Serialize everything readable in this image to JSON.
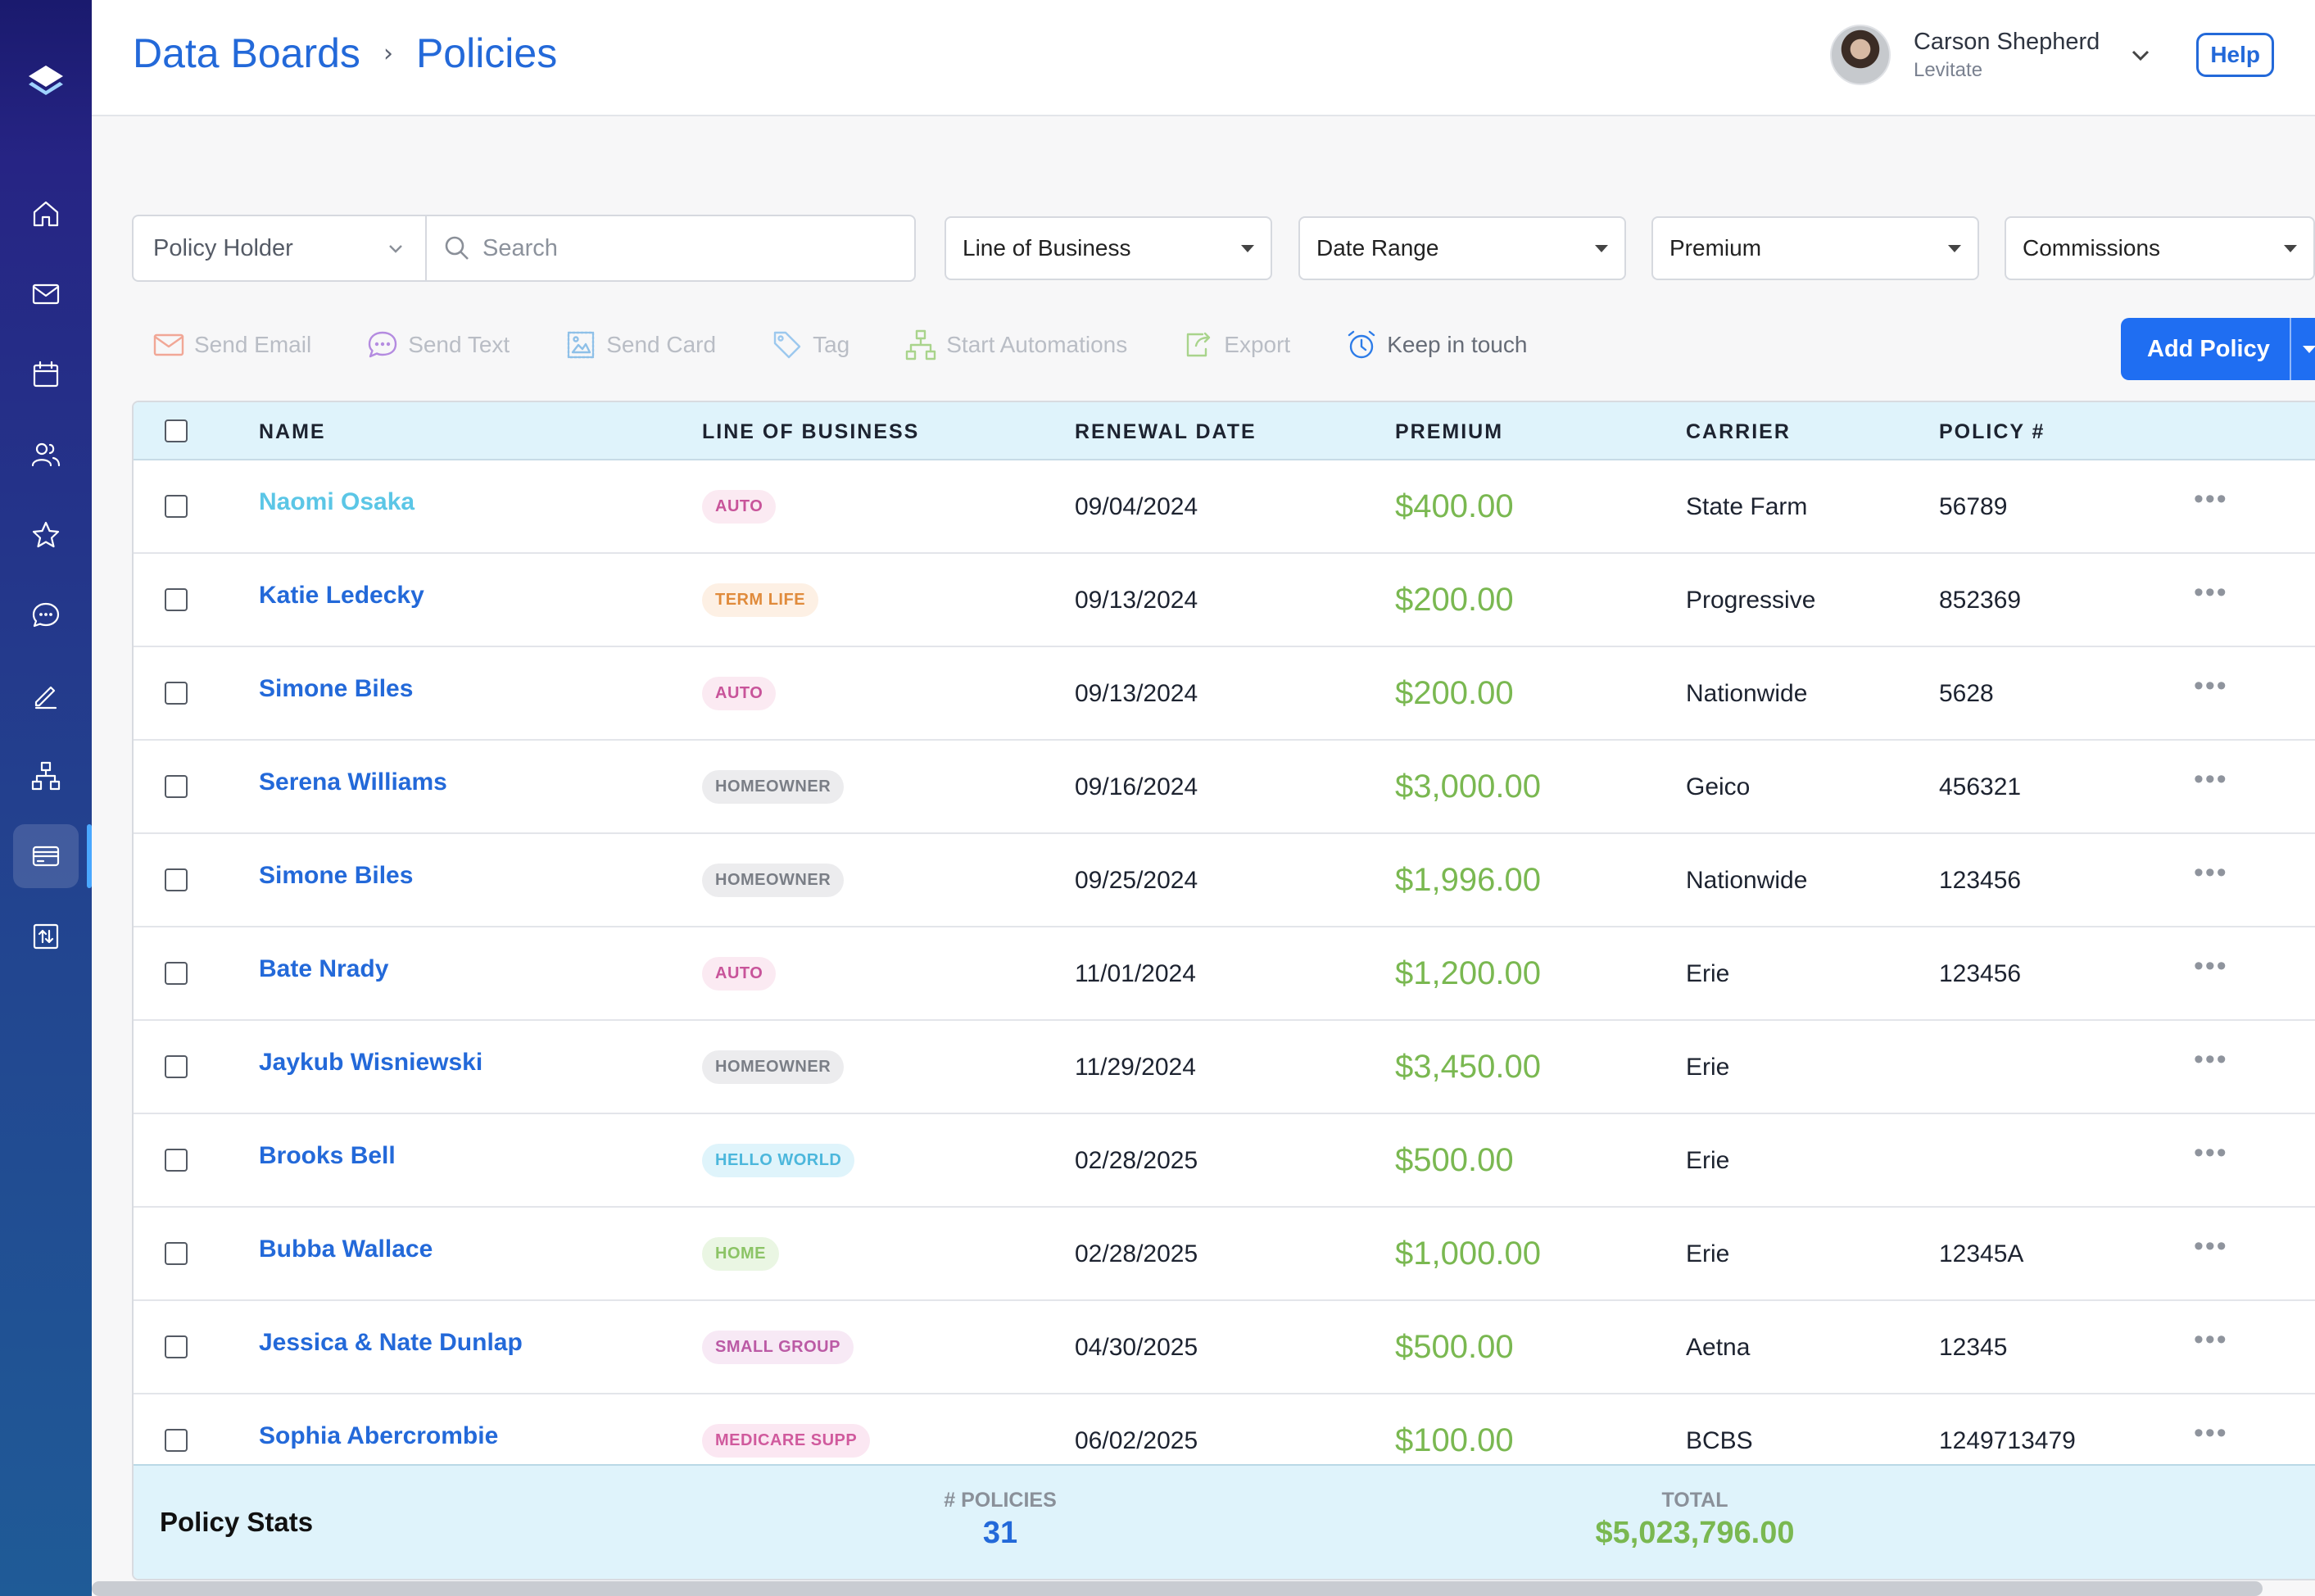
{
  "breadcrumb": {
    "root": "Data Boards",
    "separator": "›",
    "current": "Policies"
  },
  "user": {
    "name": "Carson Shepherd",
    "org": "Levitate",
    "help_label": "Help"
  },
  "nav": {
    "items": [
      "logo-icon",
      "home-icon",
      "mail-icon",
      "calendar-icon",
      "users-icon",
      "star-icon",
      "chat-icon",
      "edit-icon",
      "sitemap-icon",
      "card-icon",
      "import-export-icon"
    ],
    "active": "card-icon"
  },
  "filters": {
    "policy_holder": "Policy Holder",
    "search_placeholder": "Search",
    "line_of_business": "Line of Business",
    "date_range": "Date Range",
    "premium": "Premium",
    "commissions": "Commissions"
  },
  "actions": {
    "send_email": "Send Email",
    "send_text": "Send Text",
    "send_card": "Send Card",
    "tag": "Tag",
    "start_automations": "Start Automations",
    "export": "Export",
    "keep_in_touch": "Keep in touch",
    "add_policy": "Add Policy"
  },
  "table": {
    "headers": {
      "name": "NAME",
      "lob": "LINE OF BUSINESS",
      "renewal": "RENEWAL DATE",
      "premium": "PREMIUM",
      "carrier": "CARRIER",
      "policy": "POLICY #"
    },
    "rows": [
      {
        "name": "Naomi Osaka",
        "lob": "AUTO",
        "renewal": "09/04/2024",
        "premium": "$400.00",
        "carrier": "State Farm",
        "policy": "56789",
        "more": "•••"
      },
      {
        "name": "Katie Ledecky",
        "lob": "TERM LIFE",
        "renewal": "09/13/2024",
        "premium": "$200.00",
        "carrier": "Progressive",
        "policy": "852369",
        "more": "•••"
      },
      {
        "name": "Simone Biles",
        "lob": "AUTO",
        "renewal": "09/13/2024",
        "premium": "$200.00",
        "carrier": "Nationwide",
        "policy": "5628",
        "more": "•••"
      },
      {
        "name": "Serena Williams",
        "lob": "HOMEOWNER",
        "renewal": "09/16/2024",
        "premium": "$3,000.00",
        "carrier": "Geico",
        "policy": "456321",
        "more": "•••"
      },
      {
        "name": "Simone Biles",
        "lob": "HOMEOWNER",
        "renewal": "09/25/2024",
        "premium": "$1,996.00",
        "carrier": "Nationwide",
        "policy": "123456",
        "more": "•••"
      },
      {
        "name": "Bate Nrady",
        "lob": "AUTO",
        "renewal": "11/01/2024",
        "premium": "$1,200.00",
        "carrier": "Erie",
        "policy": "123456",
        "more": "•••"
      },
      {
        "name": "Jaykub Wisniewski",
        "lob": "HOMEOWNER",
        "renewal": "11/29/2024",
        "premium": "$3,450.00",
        "carrier": "Erie",
        "policy": "",
        "more": "•••"
      },
      {
        "name": "Brooks Bell",
        "lob": "HELLO WORLD",
        "renewal": "02/28/2025",
        "premium": "$500.00",
        "carrier": "Erie",
        "policy": "",
        "more": "•••"
      },
      {
        "name": "Bubba Wallace",
        "lob": "HOME",
        "renewal": "02/28/2025",
        "premium": "$1,000.00",
        "carrier": "Erie",
        "policy": "12345A",
        "more": "•••"
      },
      {
        "name": "Jessica & Nate Dunlap",
        "lob": "SMALL GROUP",
        "renewal": "04/30/2025",
        "premium": "$500.00",
        "carrier": "Aetna",
        "policy": "12345",
        "more": "•••"
      },
      {
        "name": "Sophia Abercrombie",
        "lob": "MEDICARE SUPP",
        "renewal": "06/02/2025",
        "premium": "$100.00",
        "carrier": "BCBS",
        "policy": "1249713479",
        "more": "•••"
      }
    ]
  },
  "tag_colors": {
    "AUTO": "#c8549a",
    "TERM LIFE": "#e08b3c",
    "HOMEOWNER": "#7a7e86",
    "HELLO WORLD": "#4cb7dc",
    "HOME": "#8cc466",
    "SMALL GROUP": "#bb5aa5",
    "MEDICARE SUPP": "#d05a9d"
  },
  "stats": {
    "title": "Policy Stats",
    "count_label": "# POLICIES",
    "count_value": "31",
    "total_label": "TOTAL",
    "total_value": "$5,023,796.00"
  },
  "colors": {
    "accent": "#2369d9",
    "premium_green": "#7ab851",
    "header_bg": "#dff3fb"
  }
}
